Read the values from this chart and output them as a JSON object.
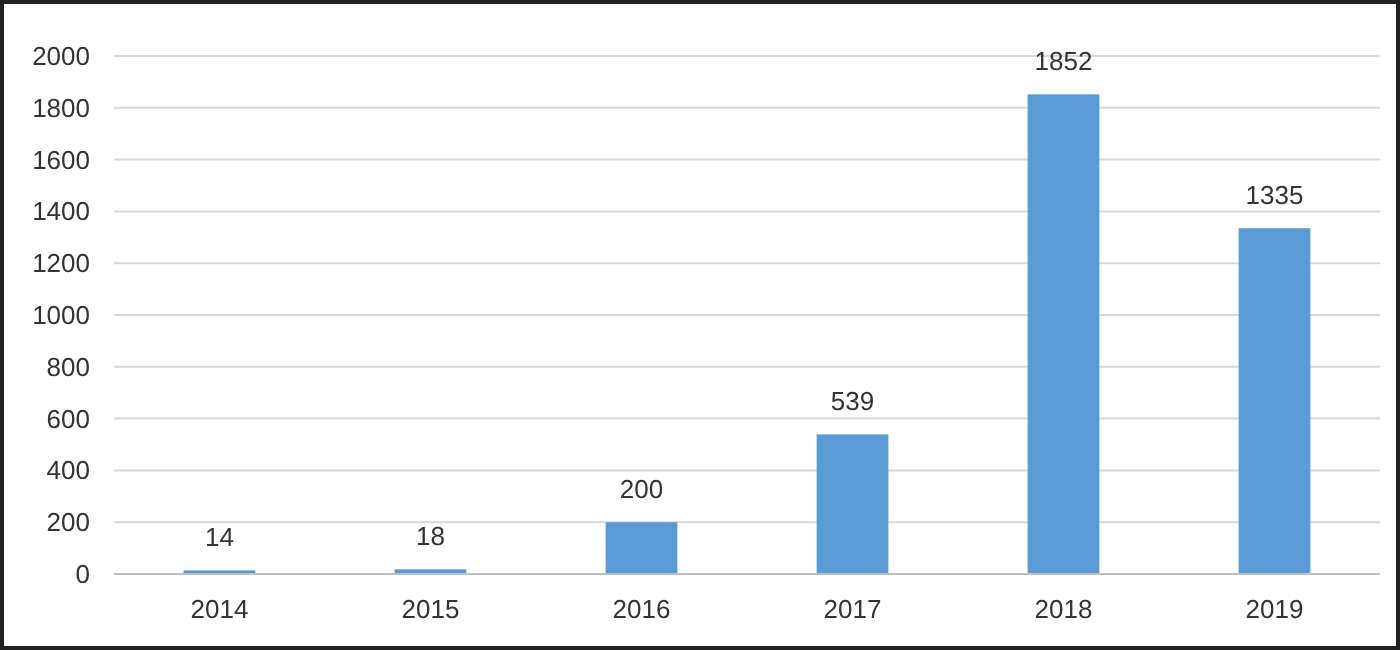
{
  "chart_data": {
    "type": "bar",
    "categories": [
      "2014",
      "2015",
      "2016",
      "2017",
      "2018",
      "2019"
    ],
    "values": [
      14,
      18,
      200,
      539,
      1852,
      1335
    ],
    "color": "#5b9bd5",
    "ylim": [
      0,
      2000
    ],
    "yticks": [
      0,
      200,
      400,
      600,
      800,
      1000,
      1200,
      1400,
      1600,
      1800,
      2000
    ],
    "grid": "y",
    "data_labels": true
  }
}
